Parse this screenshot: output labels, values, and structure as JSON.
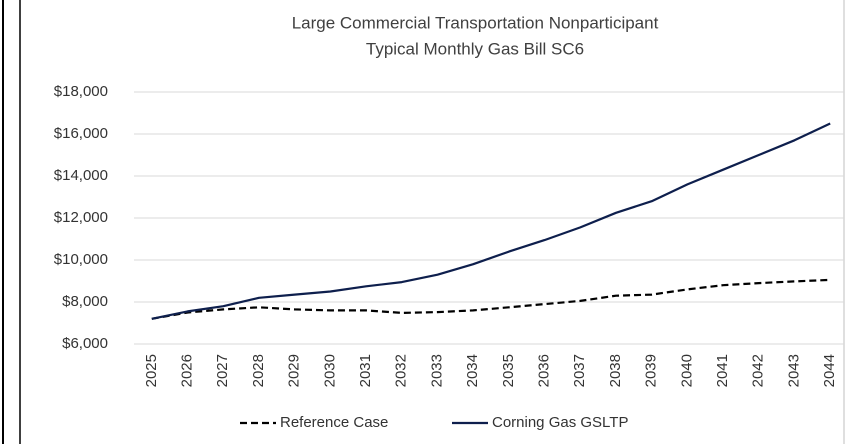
{
  "chart_data": {
    "type": "line",
    "title": [
      "Large Commercial Transportation Nonparticipant",
      "Typical Monthly Gas Bill SC6"
    ],
    "categories": [
      "2025",
      "2026",
      "2027",
      "2028",
      "2029",
      "2030",
      "2031",
      "2032",
      "2033",
      "2034",
      "2035",
      "2036",
      "2037",
      "2038",
      "2039",
      "2040",
      "2041",
      "2042",
      "2043",
      "2044"
    ],
    "series": [
      {
        "name": "Reference Case",
        "color": "#000000",
        "dashed": true,
        "values": [
          7200,
          7500,
          7650,
          7750,
          7650,
          7600,
          7600,
          7480,
          7520,
          7600,
          7750,
          7900,
          8050,
          8300,
          8350,
          8600,
          8800,
          8900,
          8980,
          9050
        ]
      },
      {
        "name": "Corning Gas GSLTP",
        "color": "#0e1f4d",
        "dashed": false,
        "values": [
          7200,
          7550,
          7800,
          8200,
          8350,
          8500,
          8750,
          8950,
          9300,
          9800,
          10400,
          10950,
          11550,
          12250,
          12800,
          13600,
          14300,
          15000,
          15700,
          16500
        ]
      }
    ],
    "ylim": [
      6000,
      18000
    ],
    "yticks": [
      {
        "value": 6000,
        "label": "$6,000"
      },
      {
        "value": 8000,
        "label": "$8,000"
      },
      {
        "value": 10000,
        "label": "$10,000"
      },
      {
        "value": 12000,
        "label": "$12,000"
      },
      {
        "value": 14000,
        "label": "$14,000"
      },
      {
        "value": 16000,
        "label": "$16,000"
      },
      {
        "value": 18000,
        "label": "$18,000"
      }
    ],
    "grid": true,
    "legend": "bottom"
  }
}
